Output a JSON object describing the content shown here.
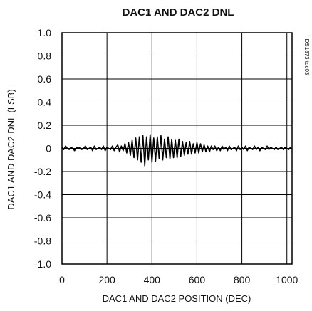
{
  "chart_data": {
    "type": "line",
    "title": "DAC1 AND DAC2 DNL",
    "xlabel": "DAC1 AND DAC2 POSITION (DEC)",
    "ylabel": "DAC1 AND DAC2 DNL (LSB)",
    "figure_code": "DS1873 toc03",
    "xlim": [
      0,
      1023
    ],
    "ylim": [
      -1.0,
      1.0
    ],
    "x_ticks": [
      "0",
      "200",
      "400",
      "600",
      "800",
      "1000"
    ],
    "x_tick_values": [
      0,
      200,
      400,
      600,
      800,
      1000
    ],
    "y_ticks": [
      "1.0",
      "0.8",
      "0.6",
      "0.4",
      "0.2",
      "0",
      "-0.2",
      "-0.4",
      "-0.6",
      "-0.8",
      "-1.0"
    ],
    "y_tick_values": [
      1.0,
      0.8,
      0.6,
      0.4,
      0.2,
      0,
      -0.2,
      -0.4,
      -0.6,
      -0.8,
      -1.0
    ],
    "grid": true,
    "series": [
      {
        "color": "#000000",
        "x_start": 0,
        "x_step": 8,
        "values": [
          0.01,
          -0.01,
          0.02,
          0.0,
          -0.01,
          0.01,
          0.0,
          -0.02,
          0.01,
          0.0,
          0.01,
          -0.01,
          0.0,
          0.02,
          -0.01,
          0.0,
          0.01,
          -0.02,
          0.02,
          -0.01,
          0.0,
          0.01,
          -0.01,
          0.02,
          -0.02,
          0.01,
          0.0,
          -0.01,
          0.02,
          -0.02,
          0.01,
          0.03,
          -0.03,
          0.02,
          -0.02,
          0.04,
          -0.04,
          0.05,
          -0.06,
          0.07,
          -0.08,
          0.09,
          -0.1,
          0.1,
          -0.12,
          0.11,
          -0.15,
          0.1,
          -0.1,
          0.12,
          -0.12,
          0.09,
          -0.11,
          0.1,
          -0.09,
          0.11,
          -0.1,
          0.08,
          -0.08,
          0.1,
          -0.09,
          0.08,
          -0.08,
          0.07,
          -0.08,
          0.08,
          -0.07,
          0.06,
          -0.06,
          0.05,
          -0.05,
          0.06,
          -0.05,
          0.04,
          -0.04,
          0.05,
          -0.04,
          0.04,
          -0.03,
          0.03,
          -0.03,
          0.02,
          -0.03,
          0.02,
          -0.01,
          0.02,
          -0.02,
          0.01,
          -0.02,
          0.02,
          -0.01,
          0.01,
          -0.02,
          0.02,
          -0.01,
          0.0,
          0.01,
          -0.02,
          0.02,
          -0.01,
          0.01,
          -0.01,
          0.02,
          -0.02,
          0.01,
          0.0,
          -0.01,
          0.02,
          -0.01,
          0.01,
          -0.02,
          0.01,
          0.0,
          -0.01,
          0.02,
          -0.01,
          0.01,
          0.0,
          -0.01,
          0.01,
          -0.01,
          0.0,
          0.01,
          -0.01,
          0.01,
          0.0,
          -0.01,
          0.01
        ]
      }
    ]
  }
}
